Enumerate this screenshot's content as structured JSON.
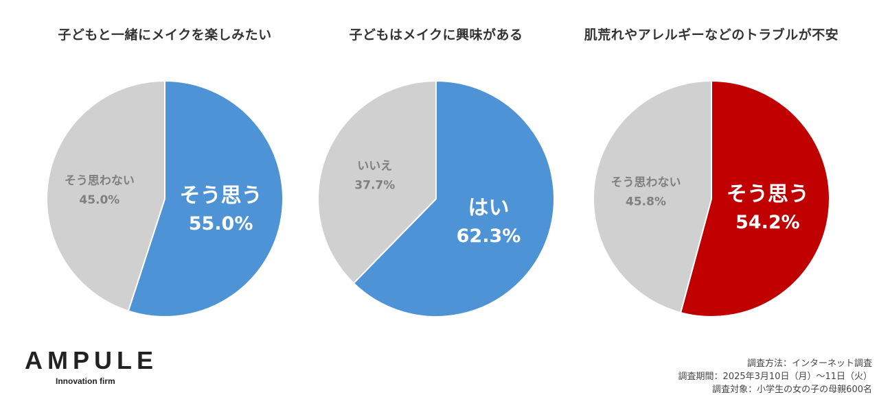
{
  "chart_data": [
    {
      "type": "pie",
      "title": "子どもと一緒にメイクを楽しみたい",
      "slices": [
        {
          "label": "そう思う",
          "value": 55.0,
          "value_text": "55.0%",
          "color": "#4e93d6"
        },
        {
          "label": "そう思わない",
          "value": 45.0,
          "value_text": "45.0%",
          "color": "#d0d0d0"
        }
      ]
    },
    {
      "type": "pie",
      "title": "子どもはメイクに興味がある",
      "slices": [
        {
          "label": "はい",
          "value": 62.3,
          "value_text": "62.3%",
          "color": "#4e93d6"
        },
        {
          "label": "いいえ",
          "value": 37.7,
          "value_text": "37.7%",
          "color": "#d0d0d0"
        }
      ]
    },
    {
      "type": "pie",
      "title": "肌荒れやアレルギーなどのトラブルが不安",
      "slices": [
        {
          "label": "そう思う",
          "value": 54.2,
          "value_text": "54.2%",
          "color": "#c00000"
        },
        {
          "label": "そう思わない",
          "value": 45.8,
          "value_text": "45.8%",
          "color": "#d0d0d0"
        }
      ]
    }
  ],
  "brand": {
    "logo": "AMPULE",
    "tagline": "Innovation firm"
  },
  "survey": {
    "method": "調査方法：インターネット調査",
    "period": "調査期間：2025年3月10日（月）～11日（火）",
    "target": "調査対象：小学生の女の子の母親600名"
  }
}
